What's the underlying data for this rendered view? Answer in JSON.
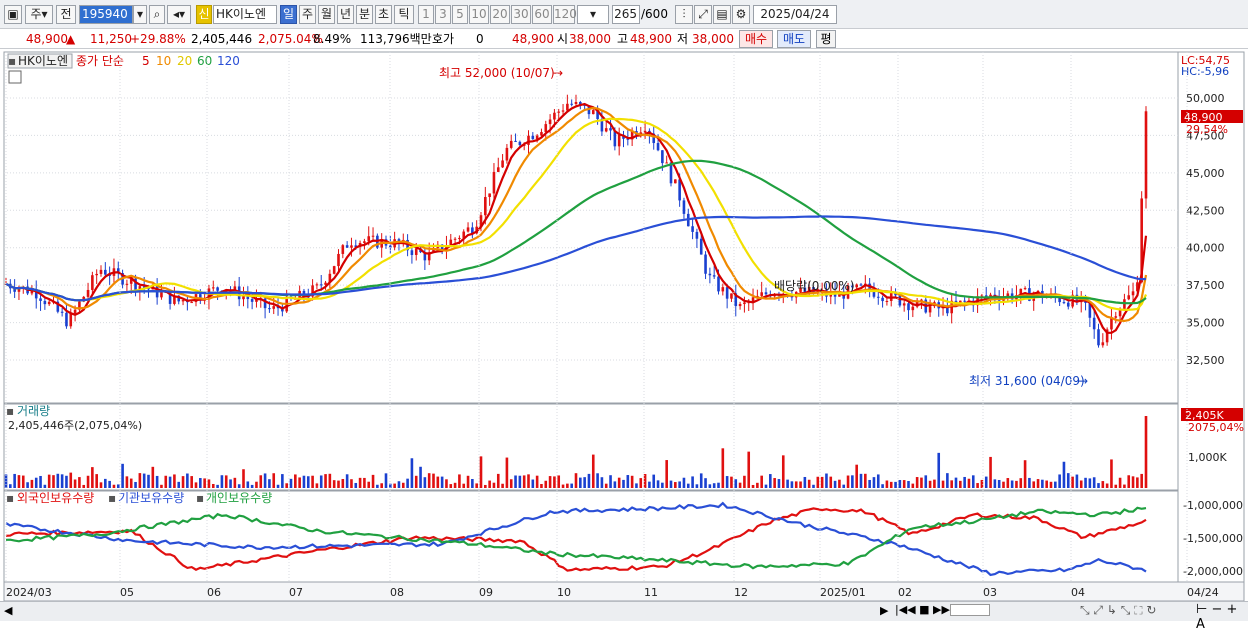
{
  "toolbar": {
    "period_ju": "주",
    "period_jeon": "전",
    "stock_code": "195940",
    "sin_badge": "신",
    "stock_name": "HK이노엔",
    "periods": [
      "일",
      "주",
      "월",
      "년",
      "분",
      "초",
      "틱"
    ],
    "minutes": [
      "1",
      "3",
      "5",
      "10",
      "20",
      "30",
      "60",
      "120"
    ],
    "count": "265",
    "count_total": "/600",
    "date": "2025/04/24"
  },
  "quote": {
    "price": "48,900",
    "change": "11,250",
    "change_pct": "+29.88%",
    "volume": "2,405,446",
    "volume_pct": "2,075.04%",
    "turnover_rate": "8.49%",
    "amount": "113,796백만",
    "hoga_label": "호가",
    "hoga_value": "0",
    "hoga_price": "48,900",
    "open_label": "시",
    "open": "38,000",
    "high_label": "고",
    "high": "48,900",
    "low_label": "저",
    "low": "38,000",
    "buy": "매수",
    "sell": "매도",
    "eval": "평"
  },
  "price_panel": {
    "stock_tag": "HK이노엔",
    "ma_label": "종가 단순",
    "ma_periods": [
      "5",
      "10",
      "20",
      "60",
      "120"
    ],
    "ma_colors": [
      "#d40000",
      "#f08a00",
      "#f2e000",
      "#20a040",
      "#2a4fd6"
    ],
    "lc": "LC:54,75",
    "hc": "HC:-5,96",
    "current_tag": "48,900",
    "current_pct": "29,54%",
    "high_note": "최고 52,000 (10/07)",
    "low_note": "최저 31,600 (04/09)",
    "dividend_note": "배당락(0,00%)",
    "y_ticks": [
      "50,000",
      "47,500",
      "45,000",
      "42,500",
      "40,000",
      "37,500",
      "35,000",
      "32,500"
    ]
  },
  "volume_panel": {
    "title": "거래량",
    "value": "2,405,446주(2,075,04%)",
    "tag": "2,405K",
    "tag_pct": "2075,04%",
    "y_tick": "1,000K"
  },
  "holding_panel": {
    "legend": [
      "외국인보유수량",
      "기관보유수량",
      "개인보유수량"
    ],
    "colors": [
      "#e01010",
      "#2a4fd6",
      "#20a040"
    ],
    "y_ticks": [
      "-1,000,000",
      "-1,500,000",
      "-2,000,000"
    ]
  },
  "x_axis": [
    "2024/03",
    "05",
    "06",
    "07",
    "08",
    "09",
    "10",
    "11",
    "12",
    "2025/01",
    "02",
    "03",
    "04",
    "04/24"
  ]
}
